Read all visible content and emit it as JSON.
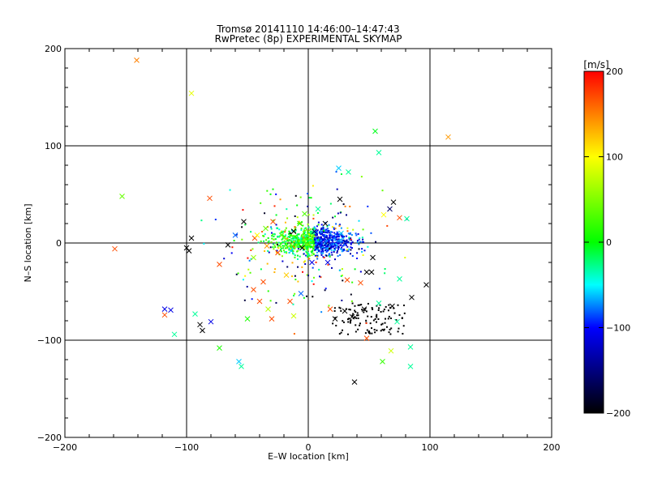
{
  "chart_data": {
    "type": "scatter",
    "title_line1": "Tromsø 20141110 14:46:00–14:47:43",
    "title_line2": "RwPretec (8p) EXPERIMENTAL SKYMAP",
    "xlabel": "E–W location [km]",
    "ylabel": "N–S location [km]",
    "xlim": [
      -200,
      200
    ],
    "ylim": [
      -200,
      200
    ],
    "x_ticks": [
      -200,
      -100,
      0,
      100,
      200
    ],
    "y_ticks": [
      -200,
      -100,
      0,
      100,
      200
    ],
    "x_tick_labels": [
      "−200",
      "−100",
      "0",
      "100",
      "200"
    ],
    "y_tick_labels": [
      "−200",
      "−100",
      "0",
      "100",
      "200"
    ],
    "grid_lines_x": [
      -100,
      0,
      100
    ],
    "grid_lines_y": [
      -100,
      0,
      100
    ],
    "colorbar": {
      "label": "[m/s]",
      "range": [
        -200,
        200
      ],
      "ticks": [
        200,
        100,
        0,
        -100,
        -200
      ],
      "tick_labels": [
        "200",
        "100",
        "0",
        "−100",
        "−200"
      ]
    },
    "crosses": [
      {
        "x": -141,
        "y": 188,
        "v": 150
      },
      {
        "x": -96,
        "y": 154,
        "v": 90
      },
      {
        "x": 115,
        "y": 109,
        "v": 140
      },
      {
        "x": -153,
        "y": 48,
        "v": 40
      },
      {
        "x": -159,
        "y": -6,
        "v": 170
      },
      {
        "x": -96,
        "y": 5,
        "v": -200
      },
      {
        "x": -81,
        "y": 46,
        "v": 170
      },
      {
        "x": -53,
        "y": 22,
        "v": -200
      },
      {
        "x": -100,
        "y": -5,
        "v": -200
      },
      {
        "x": -98,
        "y": -8,
        "v": -200
      },
      {
        "x": -73,
        "y": -22,
        "v": 170
      },
      {
        "x": -45,
        "y": -48,
        "v": 170
      },
      {
        "x": -40,
        "y": -60,
        "v": 170
      },
      {
        "x": -33,
        "y": -68,
        "v": 70
      },
      {
        "x": -37,
        "y": -40,
        "v": 170
      },
      {
        "x": -30,
        "y": -78,
        "v": 170
      },
      {
        "x": -50,
        "y": -78,
        "v": 10
      },
      {
        "x": -118,
        "y": -68,
        "v": -110
      },
      {
        "x": -113,
        "y": -69,
        "v": -110
      },
      {
        "x": -118,
        "y": -74,
        "v": 170
      },
      {
        "x": -93,
        "y": -73,
        "v": -30
      },
      {
        "x": -89,
        "y": -84,
        "v": -200
      },
      {
        "x": -87,
        "y": -90,
        "v": -200
      },
      {
        "x": -80,
        "y": -81,
        "v": -110
      },
      {
        "x": -110,
        "y": -94,
        "v": -30
      },
      {
        "x": -73,
        "y": -108,
        "v": 10
      },
      {
        "x": -57,
        "y": -122,
        "v": -60
      },
      {
        "x": -55,
        "y": -127,
        "v": -30
      },
      {
        "x": 55,
        "y": 115,
        "v": -5
      },
      {
        "x": 58,
        "y": 93,
        "v": -30
      },
      {
        "x": 25,
        "y": 77,
        "v": -60
      },
      {
        "x": 33,
        "y": 73,
        "v": -30
      },
      {
        "x": 26,
        "y": 45,
        "v": -200
      },
      {
        "x": 70,
        "y": 42,
        "v": -200
      },
      {
        "x": 67,
        "y": 35,
        "v": -160
      },
      {
        "x": 62,
        "y": 29,
        "v": 100
      },
      {
        "x": 75,
        "y": 26,
        "v": 170
      },
      {
        "x": 81,
        "y": 25,
        "v": -30
      },
      {
        "x": 53,
        "y": -15,
        "v": -200
      },
      {
        "x": 48,
        "y": -30,
        "v": -200
      },
      {
        "x": 52,
        "y": -30,
        "v": -200
      },
      {
        "x": 32,
        "y": -38,
        "v": 170
      },
      {
        "x": 43,
        "y": -41,
        "v": 170
      },
      {
        "x": 75,
        "y": -37,
        "v": -30
      },
      {
        "x": 85,
        "y": -56,
        "v": -200
      },
      {
        "x": 97,
        "y": -43,
        "v": -200
      },
      {
        "x": 69,
        "y": -65,
        "v": -200
      },
      {
        "x": 58,
        "y": -62,
        "v": -30
      },
      {
        "x": 73,
        "y": -81,
        "v": -30
      },
      {
        "x": 68,
        "y": -111,
        "v": 80
      },
      {
        "x": 84,
        "y": -107,
        "v": -30
      },
      {
        "x": 84,
        "y": -127,
        "v": -30
      },
      {
        "x": 61,
        "y": -122,
        "v": 20
      },
      {
        "x": 38,
        "y": -143,
        "v": -200
      },
      {
        "x": 18,
        "y": -68,
        "v": 170
      },
      {
        "x": 22,
        "y": -78,
        "v": -200
      },
      {
        "x": 30,
        "y": -70,
        "v": -200
      },
      {
        "x": 36,
        "y": -76,
        "v": -200
      },
      {
        "x": 46,
        "y": -68,
        "v": -200
      },
      {
        "x": 48,
        "y": -98,
        "v": 170
      },
      {
        "x": -6,
        "y": -52,
        "v": -80
      },
      {
        "x": -15,
        "y": -60,
        "v": 170
      },
      {
        "x": -12,
        "y": -75,
        "v": 80
      },
      {
        "x": -18,
        "y": -33,
        "v": 120
      },
      {
        "x": -44,
        "y": 5,
        "v": 170
      },
      {
        "x": -34,
        "y": -3,
        "v": 140
      },
      {
        "x": -25,
        "y": -10,
        "v": 170
      },
      {
        "x": -22,
        "y": 8,
        "v": 40
      },
      {
        "x": -12,
        "y": 12,
        "v": -200
      },
      {
        "x": -3,
        "y": 30,
        "v": 30
      },
      {
        "x": 8,
        "y": 35,
        "v": -30
      },
      {
        "x": 14,
        "y": 20,
        "v": -200
      },
      {
        "x": -29,
        "y": 22,
        "v": 170
      },
      {
        "x": -60,
        "y": 8,
        "v": -80
      },
      {
        "x": -66,
        "y": -2,
        "v": -200
      },
      {
        "x": -14,
        "y": -8,
        "v": -60
      },
      {
        "x": 3,
        "y": -20,
        "v": -110
      },
      {
        "x": 12,
        "y": 3,
        "v": -110
      },
      {
        "x": 20,
        "y": -4,
        "v": -110
      },
      {
        "x": 27,
        "y": 10,
        "v": -60
      },
      {
        "x": -7,
        "y": 20,
        "v": 10
      },
      {
        "x": 5,
        "y": 12,
        "v": -160
      },
      {
        "x": -42,
        "y": 8,
        "v": 100
      },
      {
        "x": -35,
        "y": 15,
        "v": 40
      },
      {
        "x": -45,
        "y": -15,
        "v": 60
      },
      {
        "x": -5,
        "y": -5,
        "v": -200
      },
      {
        "x": 16,
        "y": -20,
        "v": -110
      }
    ]
  }
}
